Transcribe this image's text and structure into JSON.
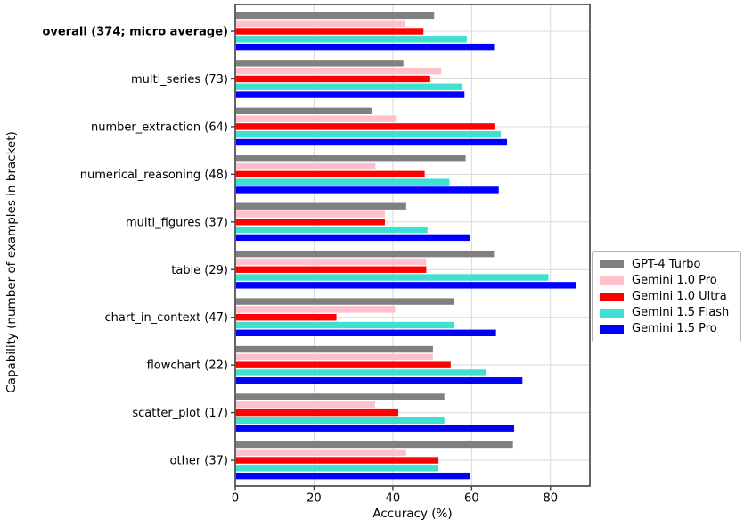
{
  "chart_data": {
    "type": "bar",
    "orientation": "horizontal",
    "title": "",
    "xlabel": "Accuracy (%)",
    "ylabel": "Capability (number of examples in bracket)",
    "xlim": [
      0,
      90
    ],
    "xticks": [
      0,
      20,
      40,
      60,
      80
    ],
    "grid": true,
    "legend_position": "outside-right-middle",
    "categories": [
      "overall (374;  micro average)",
      "multi_series (73)",
      "number_extraction (64)",
      "numerical_reasoning (48)",
      "multi_figures (37)",
      "table (29)",
      "chart_in_context (47)",
      "flowchart (22)",
      "scatter_plot (17)",
      "other (37)"
    ],
    "bold_category_index": 0,
    "series": [
      {
        "name": "GPT-4 Turbo",
        "color": "#808080",
        "values": [
          50.3,
          42.5,
          34.4,
          58.3,
          43.2,
          65.5,
          55.3,
          50.0,
          52.9,
          70.3
        ]
      },
      {
        "name": "Gemini 1.0 Pro",
        "color": "#ffc0cb",
        "values": [
          42.8,
          52.1,
          40.6,
          35.4,
          37.8,
          48.3,
          40.4,
          50.0,
          35.3,
          43.2
        ]
      },
      {
        "name": "Gemini 1.0 Ultra",
        "color": "#ff0000",
        "values": [
          47.6,
          49.3,
          65.6,
          47.9,
          37.8,
          48.3,
          25.5,
          54.5,
          41.2,
          51.4
        ]
      },
      {
        "name": "Gemini 1.5 Flash",
        "color": "#40e0d0",
        "values": [
          58.6,
          57.5,
          67.2,
          54.2,
          48.6,
          79.3,
          55.3,
          63.6,
          52.9,
          51.4
        ]
      },
      {
        "name": "Gemini 1.5 Pro",
        "color": "#0000ff",
        "values": [
          65.5,
          58.0,
          68.8,
          66.7,
          59.5,
          86.2,
          66.0,
          72.7,
          70.6,
          59.5
        ]
      }
    ],
    "colors": {
      "grid": "#d9d9d9",
      "spine": "#404040",
      "legend_border": "#b3b3b3"
    }
  }
}
